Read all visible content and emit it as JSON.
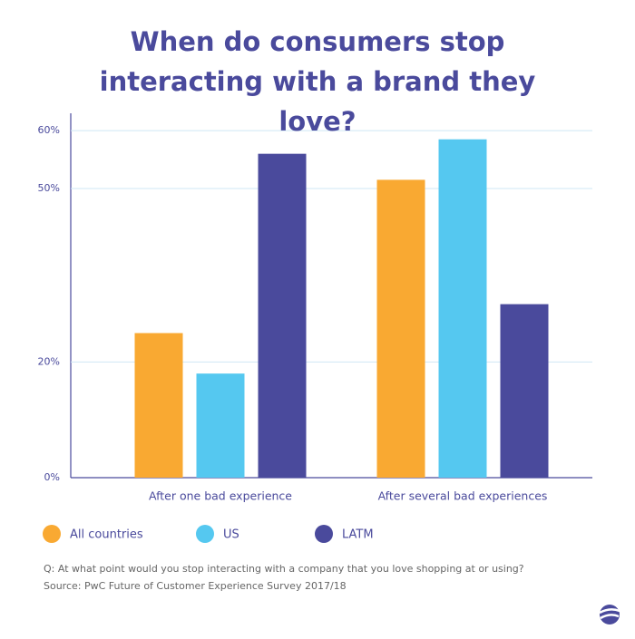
{
  "chart_data": {
    "type": "bar",
    "title": "When do consumers stop interacting with a brand they love?",
    "categories": [
      "After one bad experience",
      "After several bad experiences"
    ],
    "series": [
      {
        "name": "All countries",
        "color": "#f9a932",
        "values": [
          25,
          51.5
        ]
      },
      {
        "name": "US",
        "color": "#55c8f0",
        "values": [
          18,
          58.5
        ]
      },
      {
        "name": "LATM",
        "color": "#4a4a9c",
        "values": [
          56,
          30
        ]
      }
    ],
    "ylim": [
      0,
      63
    ],
    "yticks": [
      {
        "value": 0,
        "label": "0%"
      },
      {
        "value": 20,
        "label": "20%"
      },
      {
        "value": 50,
        "label": "50%"
      },
      {
        "value": 60,
        "label": "60%"
      }
    ],
    "grid": true,
    "notes": [
      "Q: At what point would you stop interacting with a company that you love shopping at or using?",
      "Source: PwC Future of Customer Experience Survey 2017/18"
    ]
  }
}
